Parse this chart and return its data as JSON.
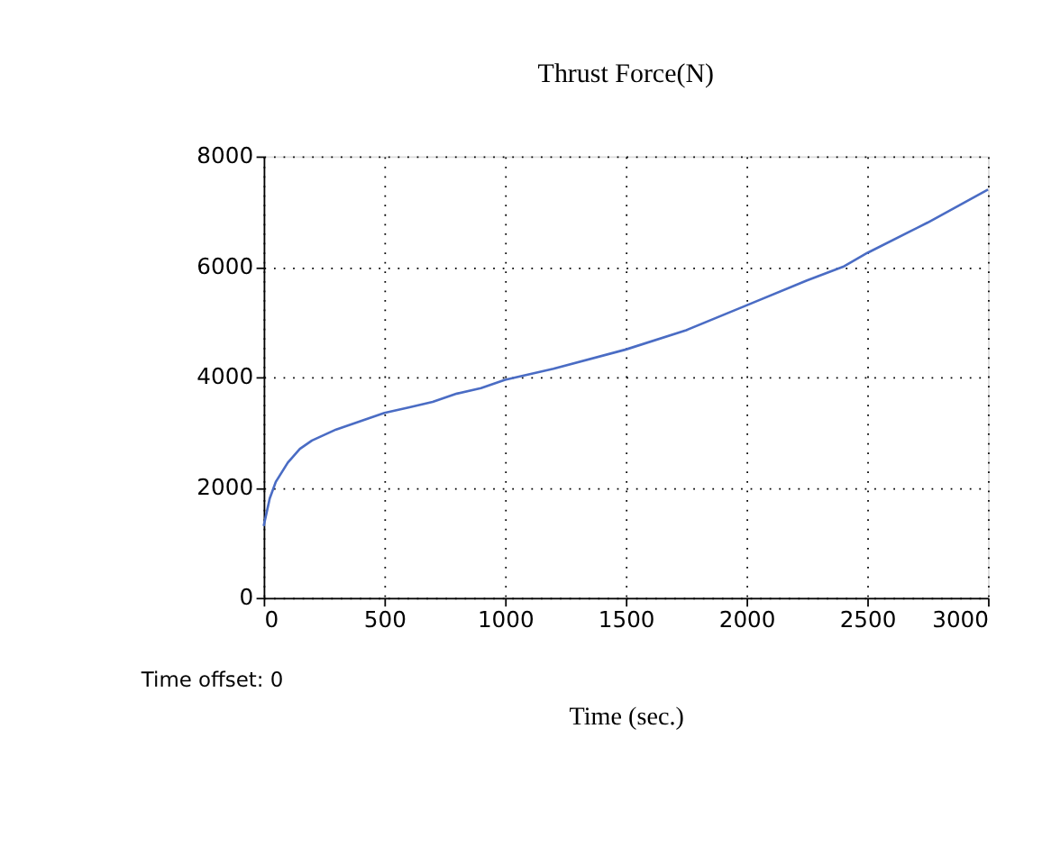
{
  "chart_data": {
    "type": "line",
    "title": "Thrust Force(N)",
    "xlabel": "Time (sec.)",
    "annotations": [
      "Time offset:  0"
    ],
    "x": [
      0,
      25,
      50,
      100,
      150,
      200,
      300,
      400,
      500,
      600,
      700,
      800,
      900,
      1000,
      1200,
      1500,
      1750,
      2000,
      2250,
      2400,
      2500,
      2750,
      3000
    ],
    "series": [
      {
        "color": "#4a6cc4",
        "values": [
          1300,
          1800,
          2100,
          2450,
          2700,
          2850,
          3050,
          3200,
          3350,
          3450,
          3550,
          3700,
          3800,
          3950,
          4150,
          4500,
          4850,
          5300,
          5750,
          6000,
          6250,
          6800,
          7400
        ]
      }
    ],
    "xlim": [
      0,
      3000
    ],
    "xticks": [
      0,
      500,
      1000,
      1500,
      2000,
      2500,
      3000
    ],
    "ylim": [
      0,
      8000
    ],
    "yticks": [
      0,
      2000,
      4000,
      6000,
      8000
    ],
    "grid": true,
    "legend": false,
    "marker": "none",
    "line_style": "solid"
  }
}
